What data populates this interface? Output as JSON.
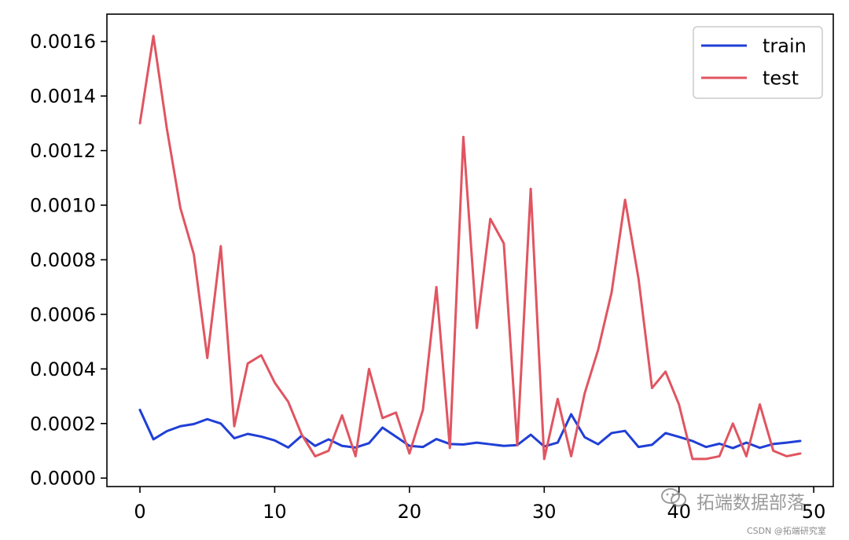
{
  "chart_data": {
    "type": "line",
    "x": [
      0,
      1,
      2,
      3,
      4,
      5,
      6,
      7,
      8,
      9,
      10,
      11,
      12,
      13,
      14,
      15,
      16,
      17,
      18,
      19,
      20,
      21,
      22,
      23,
      24,
      25,
      26,
      27,
      28,
      29,
      30,
      31,
      32,
      33,
      34,
      35,
      36,
      37,
      38,
      39,
      40,
      41,
      42,
      43,
      44,
      45,
      46,
      47,
      48,
      49
    ],
    "series": [
      {
        "name": "train",
        "color": "#1f3fd6",
        "values": [
          0.00025,
          0.000142,
          0.000172,
          0.00019,
          0.000198,
          0.000216,
          0.0002,
          0.000146,
          0.000162,
          0.000152,
          0.000138,
          0.000112,
          0.000155,
          0.000118,
          0.000142,
          0.000118,
          0.000112,
          0.000128,
          0.000185,
          0.000152,
          0.000118,
          0.000114,
          0.000143,
          0.000125,
          0.000123,
          0.00013,
          0.000124,
          0.000118,
          0.000121,
          0.000159,
          0.000116,
          0.00013,
          0.000234,
          0.00015,
          0.000124,
          0.000165,
          0.000173,
          0.000114,
          0.000122,
          0.000165,
          0.000151,
          0.000136,
          0.000114,
          0.000126,
          0.00011,
          0.00013,
          0.000111,
          0.000125,
          0.00013,
          0.000136
        ]
      },
      {
        "name": "test",
        "color": "#e05561",
        "values": [
          0.0013,
          0.00162,
          0.00128,
          0.00099,
          0.00082,
          0.00044,
          0.00085,
          0.00019,
          0.00042,
          0.00045,
          0.00035,
          0.00028,
          0.00016,
          8e-05,
          0.0001,
          0.00023,
          8e-05,
          0.0004,
          0.00022,
          0.00024,
          9e-05,
          0.00025,
          0.0007,
          0.00011,
          0.00125,
          0.00055,
          0.00095,
          0.00086,
          0.00012,
          0.00106,
          7e-05,
          0.00029,
          8e-05,
          0.00031,
          0.00047,
          0.00068,
          0.00102,
          0.00073,
          0.00033,
          0.00039,
          0.00027,
          7e-05,
          7e-05,
          8e-05,
          0.0002,
          8e-05,
          0.00027,
          0.0001,
          8e-05,
          9e-05
        ]
      }
    ],
    "xlim": [
      -2.45,
      51.45
    ],
    "ylim": [
      -3.1e-05,
      0.0017
    ],
    "x_ticks": [
      0,
      10,
      20,
      30,
      40,
      50
    ],
    "x_tick_labels": [
      "0",
      "10",
      "20",
      "30",
      "40",
      "50"
    ],
    "y_ticks": [
      0,
      0.0002,
      0.0004,
      0.0006,
      0.0008,
      0.001,
      0.0012,
      0.0014,
      0.0016
    ],
    "y_tick_labels": [
      "0.0000",
      "0.0002",
      "0.0004",
      "0.0006",
      "0.0008",
      "0.0010",
      "0.0012",
      "0.0014",
      "0.0016"
    ],
    "title": "",
    "xlabel": "",
    "ylabel": "",
    "legend_position": "top-right",
    "grid": false
  },
  "watermark": {
    "main": "拓端数据部落",
    "sub": "CSDN @拓端研究室"
  },
  "colors": {
    "axis": "#000000",
    "legend_border": "#cccccc",
    "background": "#ffffff"
  }
}
